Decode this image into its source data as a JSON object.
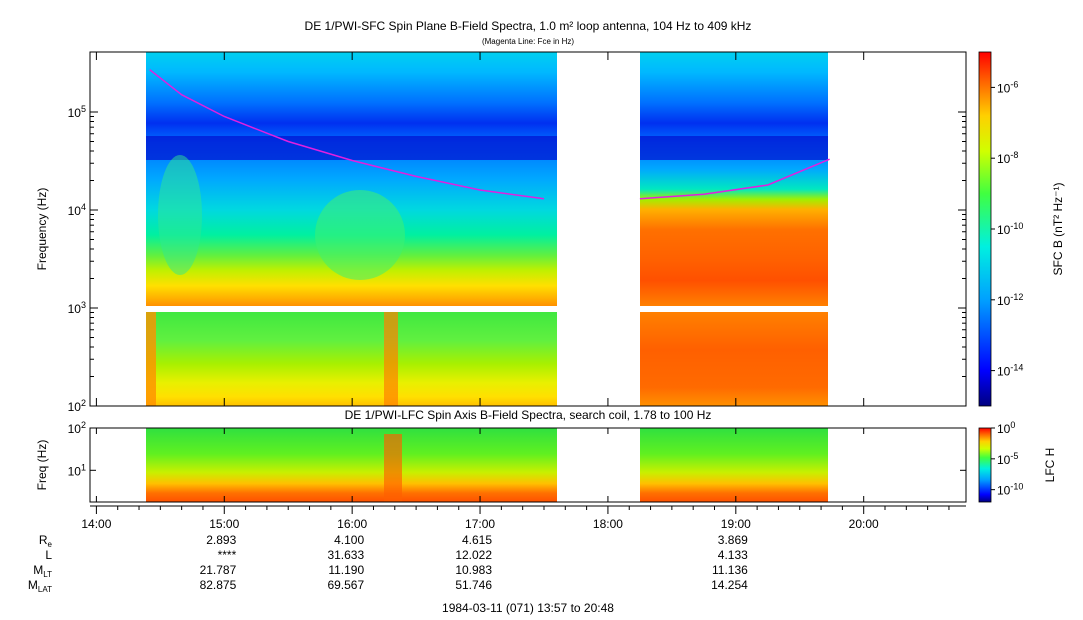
{
  "chart_data": [
    {
      "type": "heatmap",
      "title": "DE 1/PWI-SFC  Spin Plane B-Field Spectra, 1.0 m² loop antenna, 104 Hz to 409 kHz",
      "subtitle": "(Magenta Line: Fce in Hz)",
      "ylabel": "Frequency (Hz)",
      "y_scale": "log",
      "ylim": [
        100,
        409000
      ],
      "y_ticks": [
        "10^2",
        "10^3",
        "10^4",
        "10^5"
      ],
      "colorbar": {
        "label": "SFC B (nT² Hz⁻¹)",
        "scale": "log",
        "range": [
          "1e-15",
          "1e-5"
        ],
        "ticks": [
          "10^-6",
          "10^-8",
          "10^-10",
          "10^-12",
          "10^-14"
        ]
      },
      "data_intervals": [
        [
          "14:23",
          "17:36"
        ],
        [
          "18:15",
          "19:44"
        ]
      ],
      "fce_line": {
        "color": "#e020e0",
        "segments": [
          {
            "x": [
              "14:25",
              "14:40",
              "15:00",
              "15:30",
              "16:00",
              "16:30",
              "17:00",
              "17:30"
            ],
            "y": [
              270000,
              150000,
              90000,
              50000,
              32000,
              22000,
              16000,
              13000
            ]
          },
          {
            "x": [
              "18:15",
              "18:45",
              "19:15",
              "19:44"
            ],
            "y": [
              13000,
              14500,
              18000,
              33000
            ]
          }
        ]
      }
    },
    {
      "type": "heatmap",
      "title": "DE 1/PWI-LFC  Spin Axis B-Field Spectra, search coil, 1.78 to 100 Hz",
      "ylabel": "Freq (Hz)",
      "y_scale": "log",
      "ylim": [
        1.78,
        100
      ],
      "y_ticks": [
        "10^1",
        "10^2"
      ],
      "colorbar": {
        "label": "LFC H",
        "scale": "log",
        "range": [
          "1e-12",
          "1e0"
        ],
        "ticks": [
          "10^0",
          "10^-5",
          "10^-10"
        ]
      },
      "data_intervals": [
        [
          "14:23",
          "17:36"
        ],
        [
          "18:15",
          "19:44"
        ]
      ]
    }
  ],
  "time_axis": {
    "range": [
      "13:57",
      "20:48"
    ],
    "labels": [
      "14:00",
      "15:00",
      "16:00",
      "17:00",
      "18:00",
      "19:00",
      "20:00"
    ]
  },
  "ephemeris": {
    "rows": [
      {
        "label": "R",
        "sub": "e",
        "values": [
          "2.893",
          "4.100",
          "4.615",
          "",
          "3.869"
        ]
      },
      {
        "label": "L",
        "sub": "",
        "values": [
          "****",
          "31.633",
          "12.022",
          "",
          "4.133"
        ]
      },
      {
        "label": "M",
        "sub": "LT",
        "values": [
          "21.787",
          "11.190",
          "10.983",
          "",
          "11.136"
        ]
      },
      {
        "label": "M",
        "sub": "LAT",
        "values": [
          "82.875",
          "69.567",
          "51.746",
          "",
          "14.254"
        ]
      }
    ],
    "times": [
      "15:00",
      "16:00",
      "17:00",
      "18:00",
      "19:00"
    ]
  },
  "footer": "1984-03-11 (071) 13:57 to 20:48"
}
